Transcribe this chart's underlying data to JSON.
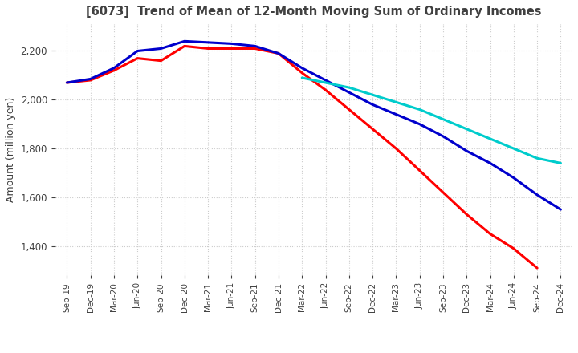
{
  "title": "[6073]  Trend of Mean of 12-Month Moving Sum of Ordinary Incomes",
  "ylabel": "Amount (million yen)",
  "ylim": [
    1280,
    2310
  ],
  "yticks": [
    1400,
    1600,
    1800,
    2000,
    2200
  ],
  "line_colors": {
    "3 Years": "#ff0000",
    "5 Years": "#0000cc",
    "7 Years": "#00cccc",
    "10 Years": "#008800"
  },
  "line_widths": {
    "3 Years": 2.2,
    "5 Years": 2.2,
    "7 Years": 2.2,
    "10 Years": 2.2
  },
  "background_color": "#ffffff",
  "grid_color": "#cccccc",
  "title_color": "#404040",
  "tick_labels": [
    "Sep-19",
    "Dec-19",
    "Mar-20",
    "Jun-20",
    "Sep-20",
    "Dec-20",
    "Mar-21",
    "Jun-21",
    "Sep-21",
    "Dec-21",
    "Mar-22",
    "Jun-22",
    "Sep-22",
    "Dec-22",
    "Mar-23",
    "Jun-23",
    "Sep-23",
    "Dec-23",
    "Mar-24",
    "Jun-24",
    "Sep-24",
    "Dec-24"
  ],
  "series": {
    "3 Years": [
      2070,
      2080,
      2120,
      2170,
      2160,
      2220,
      2210,
      2210,
      2210,
      2190,
      2110,
      2040,
      1960,
      1880,
      1800,
      1710,
      1620,
      1530,
      1450,
      1390,
      1310,
      null
    ],
    "5 Years": [
      2070,
      2085,
      2130,
      2200,
      2210,
      2240,
      2235,
      2230,
      2220,
      2190,
      2130,
      2080,
      2030,
      1980,
      1940,
      1900,
      1850,
      1790,
      1740,
      1680,
      1610,
      1550
    ],
    "7 Years": [
      null,
      null,
      null,
      null,
      null,
      null,
      null,
      null,
      null,
      null,
      2090,
      2070,
      2050,
      2020,
      1990,
      1960,
      1920,
      1880,
      1840,
      1800,
      1760,
      1740
    ],
    "10 Years": [
      null,
      null,
      null,
      null,
      null,
      null,
      null,
      null,
      null,
      null,
      null,
      null,
      null,
      null,
      null,
      null,
      null,
      null,
      null,
      null,
      null,
      null
    ]
  }
}
